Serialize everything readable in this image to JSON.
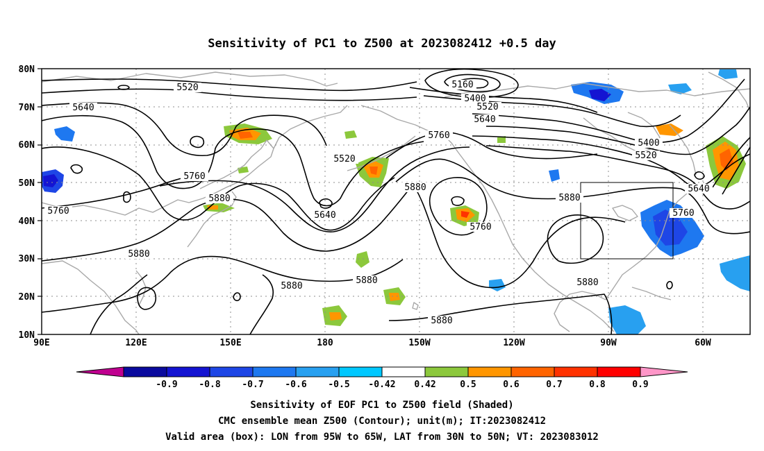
{
  "title": "Sensitivity of PC1 to Z500 at 2023082412 +0.5 day",
  "lat_labels": [
    "80N",
    "70N",
    "60N",
    "50N",
    "40N",
    "30N",
    "20N",
    "10N"
  ],
  "lon_labels": [
    "90E",
    "120E",
    "150E",
    "180",
    "150W",
    "120W",
    "90W",
    "60W"
  ],
  "contour_labels": [
    "5160",
    "5400",
    "5400",
    "5520",
    "5520",
    "5520",
    "5520",
    "5640",
    "5640",
    "5640",
    "5640",
    "5760",
    "5760",
    "5760",
    "5760",
    "5760",
    "5880",
    "5880",
    "5880",
    "5880",
    "5880",
    "5880",
    "5880",
    "5880"
  ],
  "colorbar": {
    "tick_labels": [
      "-0.9",
      "-0.8",
      "-0.7",
      "-0.6",
      "-0.5",
      "-0.42",
      "0.42",
      "0.5",
      "0.6",
      "0.7",
      "0.8",
      "0.9"
    ],
    "colors": [
      "#c00090",
      "#0a0a9e",
      "#1414d2",
      "#1e46e6",
      "#1e78f0",
      "#28a0f0",
      "#00c8ff",
      "#ffffff",
      "#8cc83c",
      "#ff9600",
      "#ff6400",
      "#ff3200",
      "#ff0000",
      "#ff96c8"
    ]
  },
  "captions": [
    "Sensitivity of EOF PC1 to Z500 field (Shaded)",
    "CMC ensemble mean Z500 (Contour); unit(m); IT:2023082412",
    "Valid area (box): LON from 95W to 65W, LAT from 30N to 50N; VT: 2023083012"
  ],
  "valid_area": {
    "lon_range": [
      "95W",
      "65W"
    ],
    "lat_range": [
      "30N",
      "50N"
    ]
  },
  "palette": {
    "coast": "#a8a8a8",
    "contour": "#000000",
    "grid": "#8c8c8c"
  }
}
